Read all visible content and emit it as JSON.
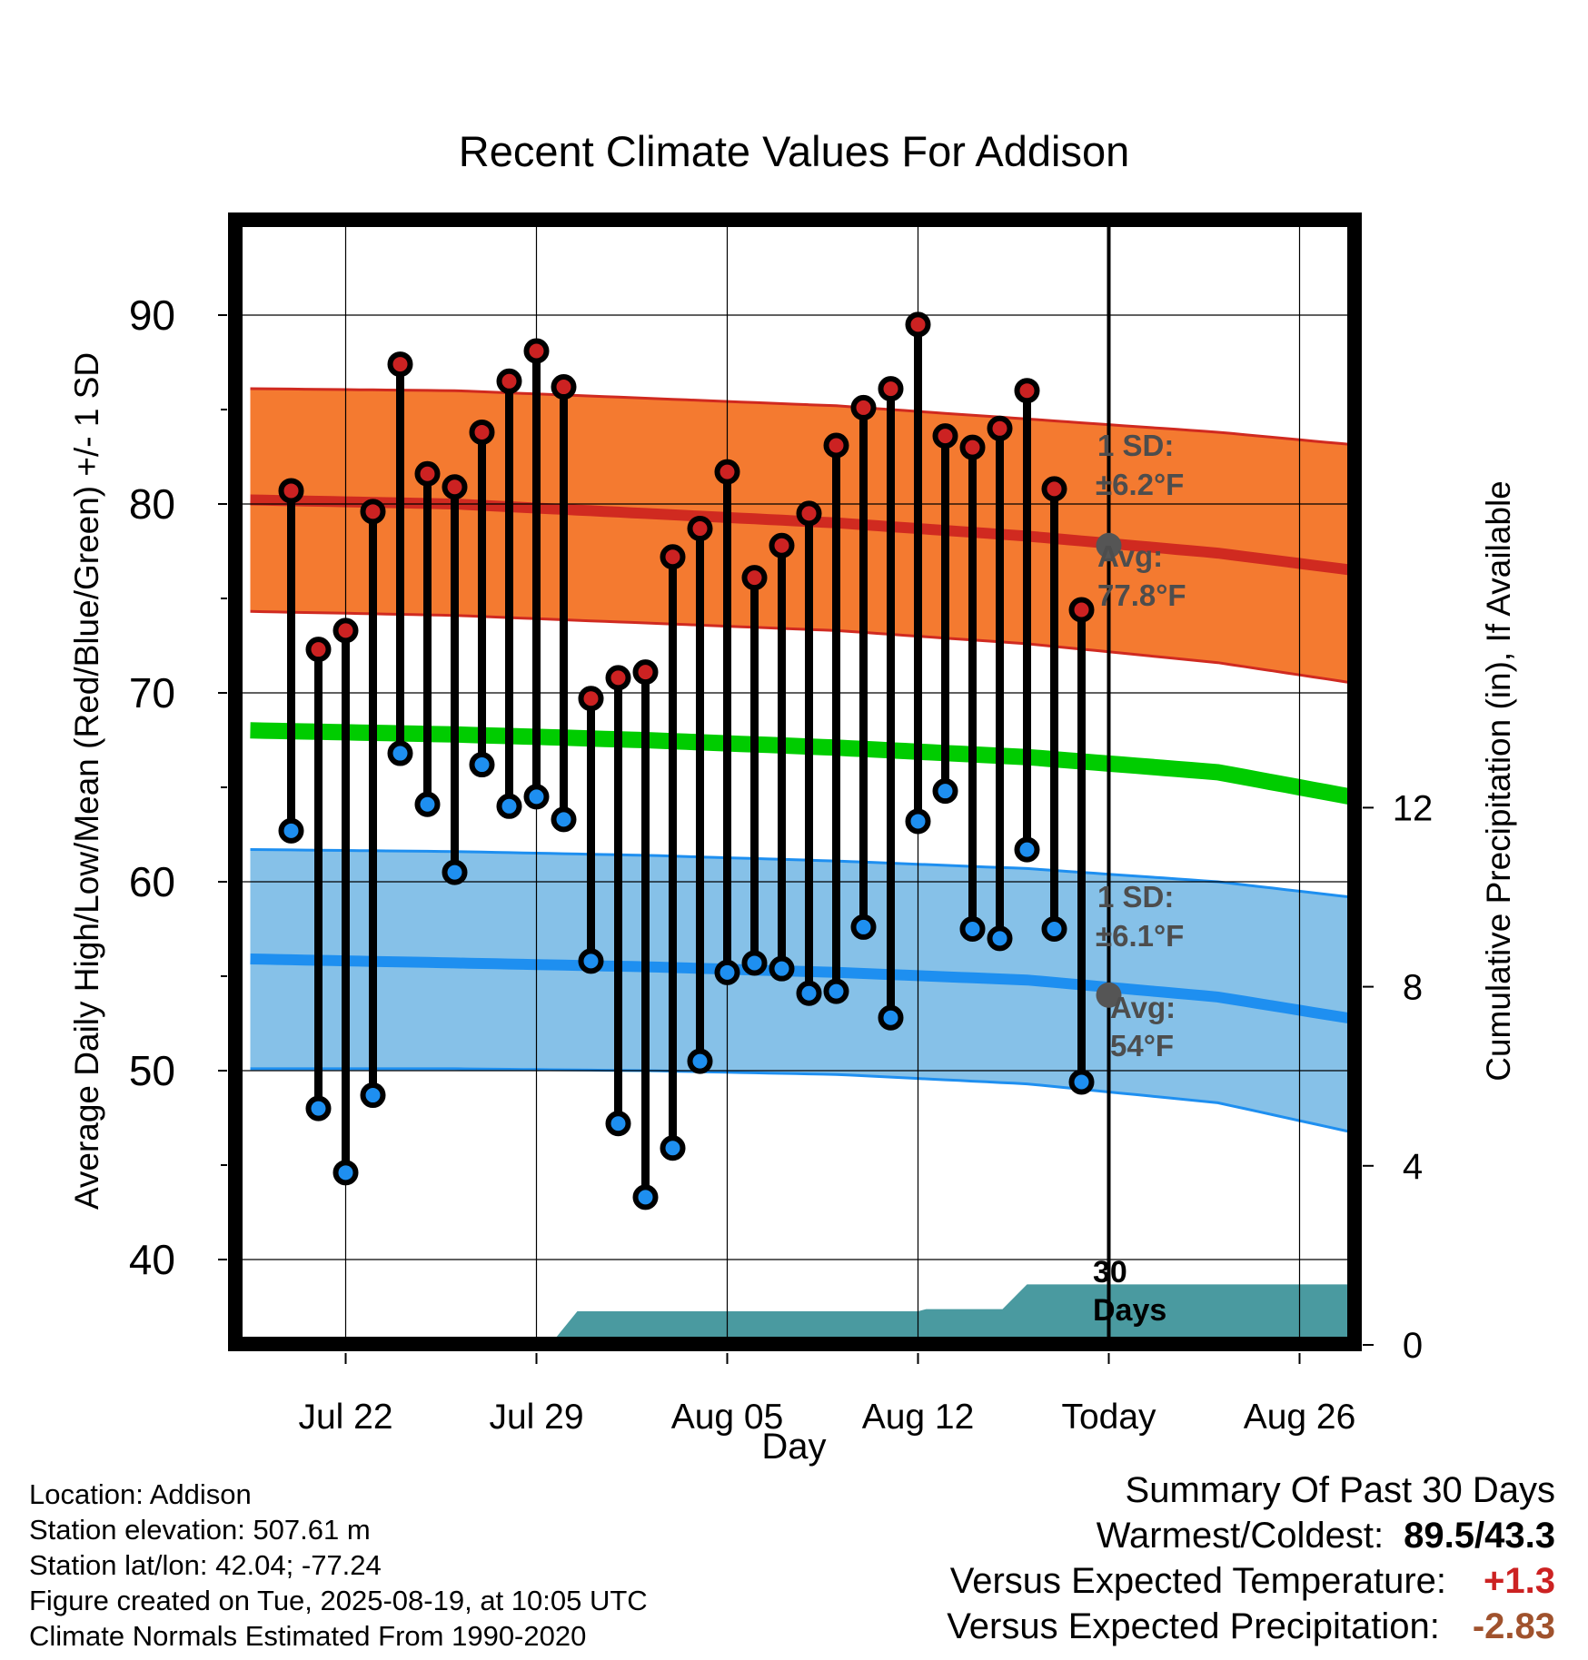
{
  "chart_data": {
    "type": "line",
    "title": "Recent Climate Values For Addison",
    "xlabel": "Day",
    "ylabel": "Average Daily High/Low/Mean (Red/Blue/Green) +/- 1 SD",
    "y2label": "Cumulative Precipitation (in), If Available",
    "ylim": [
      35,
      95
    ],
    "y2lim": [
      0,
      22
    ],
    "yticks": [
      "40",
      "50",
      "60",
      "70",
      "80",
      "90"
    ],
    "y2ticks": [
      "0",
      "4",
      "8",
      "12"
    ],
    "xticks": [
      "Jul 22",
      "Jul 29",
      "Aug 05",
      "Aug 12",
      "Today",
      "Aug 26"
    ],
    "grid": true,
    "x_day_offsets": [
      0,
      1,
      2,
      3,
      4,
      5,
      6,
      7,
      8,
      9,
      10,
      11,
      12,
      13,
      14,
      15,
      16,
      17,
      18,
      19,
      20,
      21,
      22,
      23,
      24,
      25,
      26,
      27,
      28,
      29
    ],
    "x_start_label": "Jul 20",
    "observed_high": [
      80.7,
      72.3,
      73.3,
      79.6,
      87.4,
      81.6,
      80.9,
      83.8,
      86.5,
      88.1,
      86.2,
      69.7,
      70.8,
      71.1,
      77.2,
      78.7,
      81.7,
      76.1,
      77.8,
      79.5,
      83.1,
      85.1,
      86.1,
      89.5,
      83.6,
      83.0,
      84.0,
      86.0,
      80.8,
      74.4
    ],
    "observed_low": [
      62.7,
      48.0,
      44.6,
      48.7,
      66.8,
      64.1,
      60.5,
      66.2,
      64.0,
      64.5,
      63.3,
      55.8,
      47.2,
      43.3,
      45.9,
      50.5,
      55.2,
      55.7,
      55.4,
      54.1,
      54.2,
      57.6,
      52.8,
      63.2,
      64.8,
      57.5,
      57.0,
      61.7,
      57.5,
      49.4
    ],
    "normals_day_offsets": [
      -1,
      6,
      13,
      20,
      27,
      34,
      40
    ],
    "normal_high_mean": [
      80.2,
      80.0,
      79.5,
      79.0,
      78.3,
      77.4,
      76.3
    ],
    "normal_high_upper": [
      86.1,
      86.0,
      85.6,
      85.2,
      84.5,
      83.8,
      83.0
    ],
    "normal_high_lower": [
      74.3,
      74.1,
      73.7,
      73.3,
      72.6,
      71.6,
      70.3
    ],
    "normal_mean": [
      68.0,
      67.8,
      67.5,
      67.1,
      66.6,
      65.8,
      64.2
    ],
    "normal_low_mean": [
      55.9,
      55.7,
      55.5,
      55.2,
      54.8,
      53.9,
      52.5
    ],
    "normal_low_upper": [
      61.7,
      61.6,
      61.4,
      61.1,
      60.7,
      60.0,
      59.0
    ],
    "normal_low_lower": [
      50.1,
      50.1,
      50.0,
      49.8,
      49.3,
      48.3,
      46.4
    ],
    "precip_cumulative": [
      {
        "day": 9.5,
        "value": 0
      },
      {
        "day": 10.5,
        "value": 0.75
      },
      {
        "day": 23,
        "value": 0.75
      },
      {
        "day": 23.3,
        "value": 0.8
      },
      {
        "day": 26.1,
        "value": 0.8
      },
      {
        "day": 27,
        "value": 1.35
      },
      {
        "day": 40,
        "value": 1.35
      }
    ],
    "annotations": {
      "high_sd": "1 SD:",
      "high_sd_val": "±6.2°F",
      "high_avg": "Avg:",
      "high_avg_val": "77.8°F",
      "low_sd": "1 SD:",
      "low_sd_val": "±6.1°F",
      "low_avg": "Avg:",
      "low_avg_val": "54°F",
      "days_a": "30",
      "days_b": "Days"
    },
    "today_day_offset": 30,
    "today_high_avg": 77.8,
    "today_low_avg": 54.0
  },
  "colors": {
    "high_band": "#f47a30",
    "high_band_edge": "#d02a20",
    "high_mean": "#d02a20",
    "low_band": "#86c1e8",
    "low_band_edge": "#1e8ff0",
    "low_mean": "#1e8ff0",
    "mean": "#00cc00",
    "precip": "#4a9aa0",
    "high_dot": "#cc2222",
    "low_dot": "#1e8ff0",
    "annotation": "#4d4d4d"
  },
  "footer": {
    "location": "Location: Addison",
    "elevation": "Station elevation: 507.61 m",
    "latlon": "Station lat/lon: 42.04; -77.24",
    "created": "Figure created on Tue, 2025-08-19, at 10:05 UTC",
    "normals": "Climate Normals Estimated From 1990-2020"
  },
  "summary": {
    "title": "Summary Of Past 30 Days",
    "warm_cold_label": "Warmest/Coldest:",
    "warmest": "89.5",
    "coldest": "43.3",
    "temp_label": "Versus Expected Temperature:",
    "temp_value": "+1.3",
    "prcp_label": "Versus Expected Precipitation:",
    "prcp_value": "-2.83"
  }
}
